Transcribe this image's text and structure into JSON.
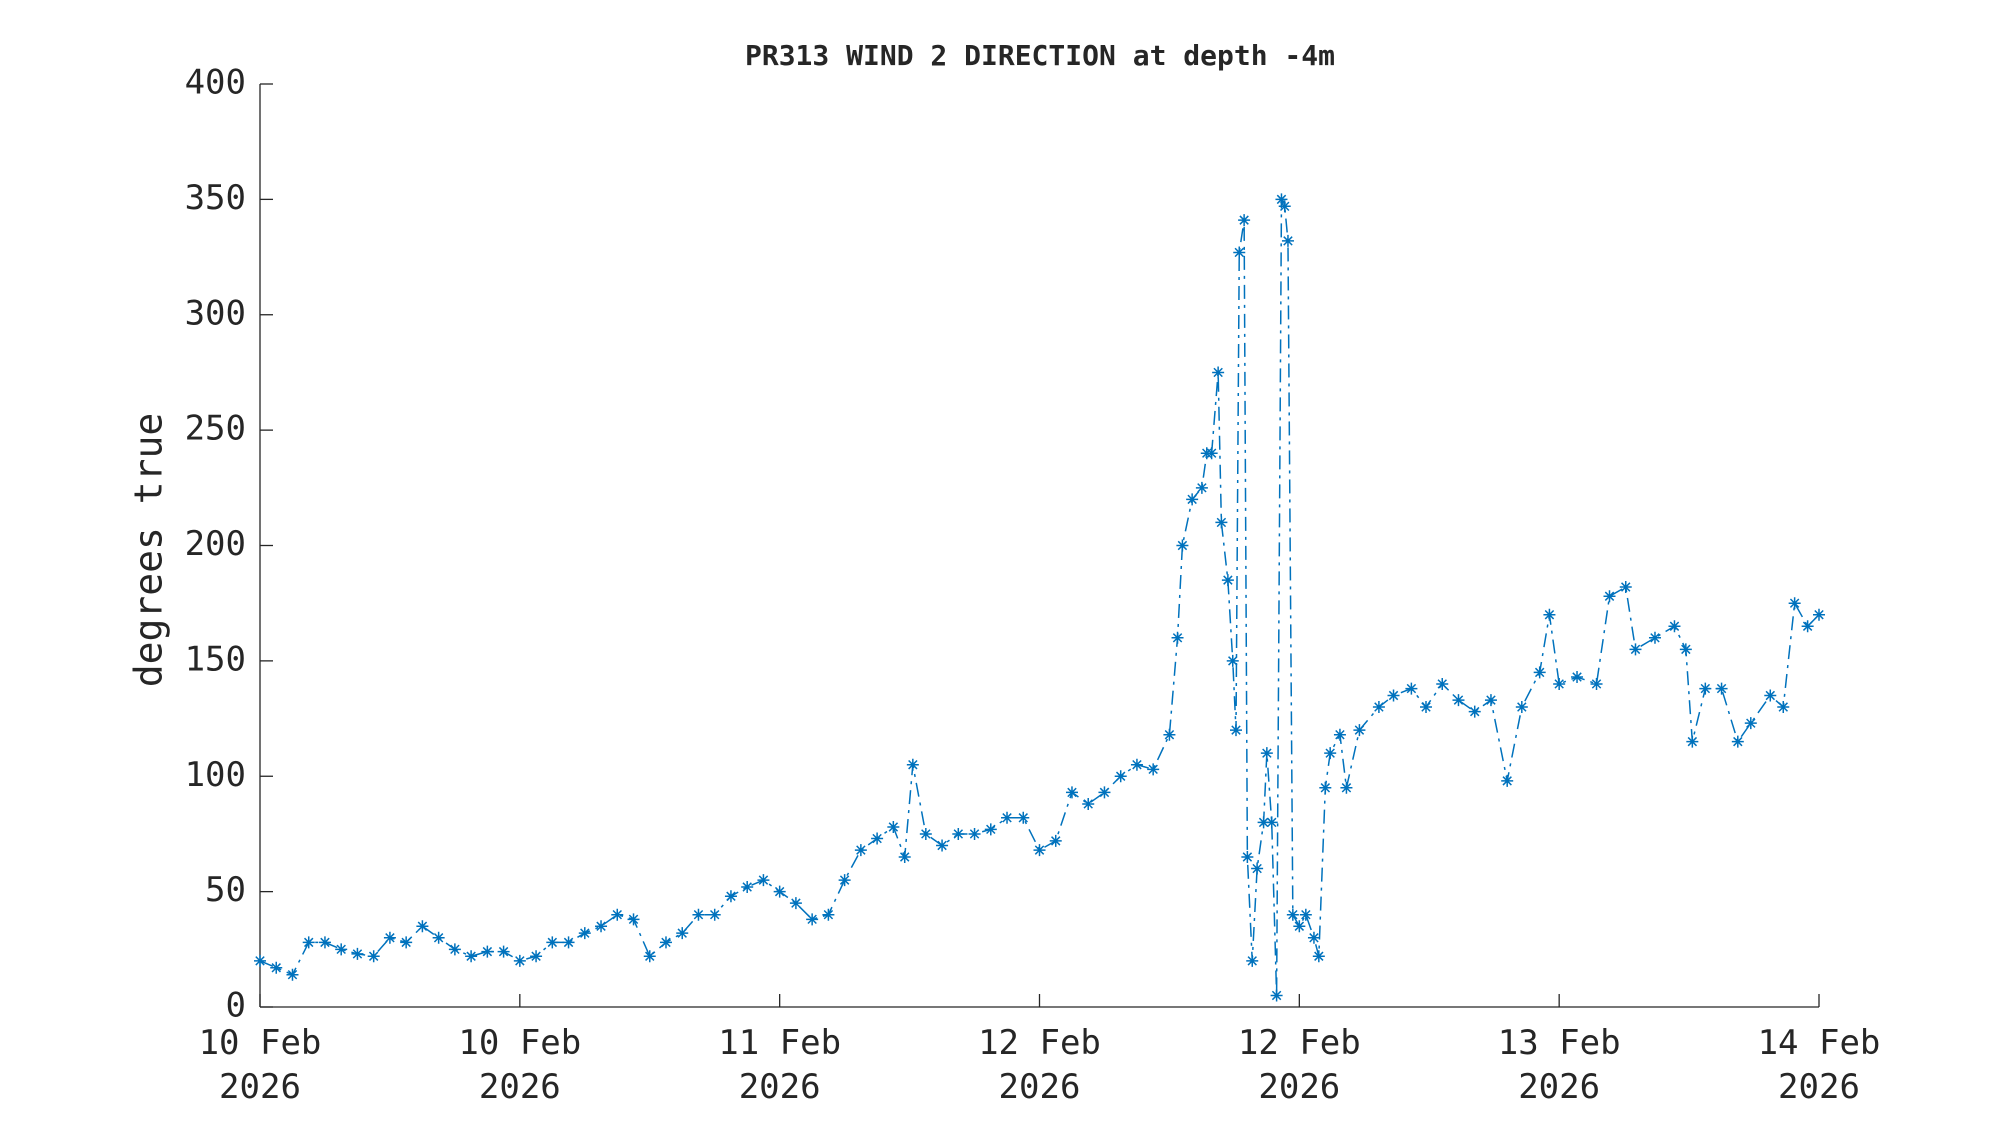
{
  "chart_data": {
    "type": "line",
    "title": "PR313 WIND 2 DIRECTION at depth -4m",
    "y_label": "degrees true",
    "color": "#0072bd",
    "line_style": "dash-dot",
    "marker": "asterisk",
    "xlim": [
      0,
      96
    ],
    "xticks": [
      {
        "value": 0,
        "label": "10 Feb 2026"
      },
      {
        "value": 16,
        "label": "10 Feb 2026"
      },
      {
        "value": 32,
        "label": "11 Feb 2026"
      },
      {
        "value": 48,
        "label": "12 Feb 2026"
      },
      {
        "value": 64,
        "label": "12 Feb 2026"
      },
      {
        "value": 80,
        "label": "13 Feb 2026"
      },
      {
        "value": 96,
        "label": "14 Feb 2026"
      }
    ],
    "ylim": [
      0,
      400
    ],
    "yticks": [
      0,
      50,
      100,
      150,
      200,
      250,
      300,
      350,
      400
    ],
    "x": [
      0,
      1,
      2,
      3,
      4,
      5,
      6,
      7,
      8,
      9,
      10,
      11,
      12,
      13,
      14,
      15,
      16,
      17,
      18,
      19,
      20,
      21,
      22,
      23,
      24,
      25,
      26,
      27,
      28,
      29,
      30,
      31,
      32,
      33,
      34,
      35,
      36,
      37,
      38,
      39,
      39.7,
      40.2,
      41,
      42,
      43,
      44,
      45,
      46,
      47,
      48,
      49,
      50,
      51,
      52,
      53,
      54,
      55,
      56,
      56.5,
      56.8,
      57.4,
      58,
      58.3,
      58.6,
      59,
      59.2,
      59.6,
      59.9,
      60.1,
      60.3,
      60.6,
      60.8,
      61.1,
      61.4,
      61.8,
      62,
      62.3,
      62.6,
      62.9,
      63.1,
      63.3,
      63.6,
      64,
      64.4,
      64.9,
      65.2,
      65.6,
      65.9,
      66.5,
      66.9,
      67.7,
      68.9,
      69.8,
      70.9,
      71.8,
      72.8,
      73.8,
      74.8,
      75.8,
      76.8,
      77.7,
      78.8,
      79.4,
      80,
      81.1,
      82.3,
      83.1,
      84.1,
      84.7,
      85.9,
      87.1,
      87.8,
      88.2,
      89,
      90,
      91,
      91.8,
      93,
      93.8,
      94.5,
      95.3,
      96
    ],
    "values": [
      20,
      17,
      14,
      28,
      28,
      25,
      23,
      22,
      30,
      28,
      35,
      30,
      25,
      22,
      24,
      24,
      20,
      22,
      28,
      28,
      32,
      35,
      40,
      38,
      22,
      28,
      32,
      40,
      40,
      48,
      52,
      55,
      50,
      45,
      38,
      40,
      55,
      68,
      73,
      78,
      65,
      105,
      75,
      70,
      75,
      75,
      77,
      82,
      82,
      68,
      72,
      93,
      88,
      93,
      100,
      105,
      103,
      118,
      160,
      200,
      220,
      225,
      240,
      240,
      275,
      210,
      185,
      150,
      120,
      327,
      341,
      65,
      20,
      60,
      80,
      110,
      80,
      5,
      350,
      347,
      332,
      40,
      35,
      40,
      30,
      22,
      95,
      110,
      118,
      95,
      120,
      130,
      135,
      138,
      130,
      140,
      133,
      128,
      133,
      98,
      130,
      145,
      170,
      140,
      143,
      140,
      178,
      182,
      155,
      160,
      165,
      155,
      115,
      138,
      138,
      115,
      123,
      135,
      130,
      175,
      165,
      170
    ]
  }
}
